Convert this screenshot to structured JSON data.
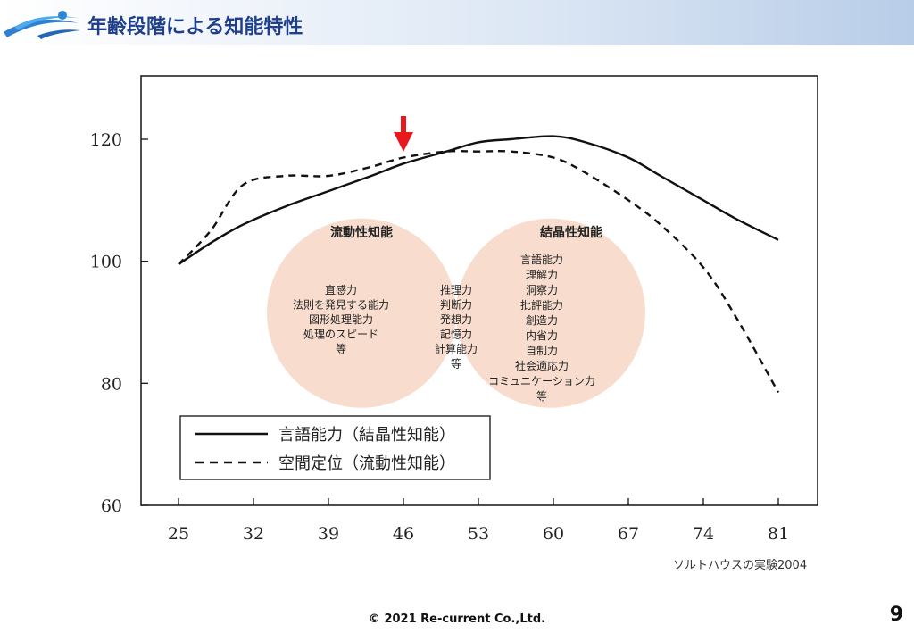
{
  "header": {
    "title": "年齢段階による知能特性"
  },
  "chart_data": {
    "type": "line",
    "x": [
      25,
      32,
      39,
      46,
      53,
      60,
      67,
      74,
      81
    ],
    "xticks": [
      "25",
      "32",
      "39",
      "46",
      "53",
      "60",
      "67",
      "74",
      "81"
    ],
    "yticks": [
      "60",
      "80",
      "100",
      "120"
    ],
    "ylim": [
      60,
      130
    ],
    "xlim": [
      25,
      81
    ],
    "grid": false,
    "legend_position": "bottom-left",
    "series": [
      {
        "name": "言語能力（結晶性知能）",
        "style": "solid",
        "x": [
          25,
          28,
          31,
          35,
          39,
          43,
          46,
          50,
          53,
          56,
          60,
          63,
          67,
          70,
          74,
          77,
          81
        ],
        "values": [
          99.5,
          103,
          106,
          109,
          111.5,
          114,
          116,
          118,
          119.5,
          120,
          120.5,
          119.5,
          117,
          114,
          110,
          107,
          103.5
        ]
      },
      {
        "name": "空間定位（流動性知能）",
        "style": "dashed",
        "x": [
          25,
          28,
          31,
          35,
          39,
          43,
          46,
          50,
          53,
          56,
          60,
          63,
          67,
          70,
          74,
          77,
          81
        ],
        "values": [
          99.5,
          105,
          112.5,
          114,
          114,
          115.5,
          117,
          118,
          118,
          118,
          117,
          114.5,
          110,
          106,
          99,
          91,
          78.5
        ]
      }
    ],
    "annotation": {
      "marker": "red-arrow",
      "x": 46
    },
    "venn": {
      "left": {
        "title": "流動性知能",
        "items": [
          "直感力",
          "法則を発見する能力",
          "図形処理能力",
          "処理のスピード",
          "等"
        ]
      },
      "center": {
        "items": [
          "推理力",
          "判断力",
          "発想力",
          "記憶力",
          "計算能力",
          "等"
        ]
      },
      "right": {
        "title": "結晶性知能",
        "items": [
          "言語能力",
          "理解力",
          "洞察力",
          "批評能力",
          "創造力",
          "内省力",
          "自制力",
          "社会適応力",
          "コミュニケーション力",
          "等"
        ]
      }
    }
  },
  "source_note": "ソルトハウスの実験2004",
  "footer": {
    "copyright": "© 2021 Re-current Co.,Ltd.",
    "page_number": "9"
  },
  "colors": {
    "title": "#1d3f8c",
    "arrow": "#e8191c",
    "venn_fill": "#f3c6ad"
  }
}
